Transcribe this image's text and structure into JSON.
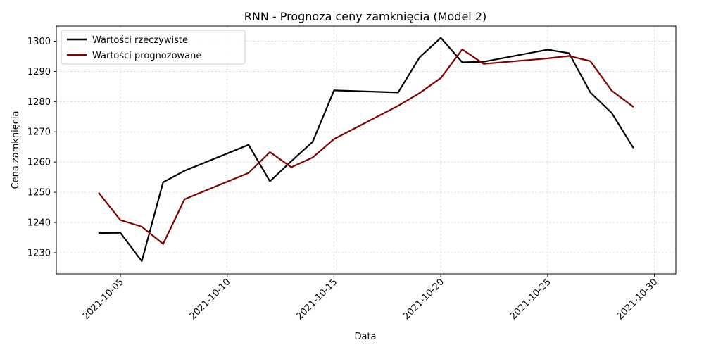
{
  "chart_data": {
    "type": "line",
    "title": "RNN - Prognoza ceny zamknięcia (Model 2)",
    "xlabel": "Data",
    "ylabel": "Cena zamknięcia",
    "x_tick_labels": [
      "2021-10-05",
      "2021-10-10",
      "2021-10-15",
      "2021-10-20",
      "2021-10-25",
      "2021-10-30"
    ],
    "y_ticks": [
      1230,
      1240,
      1250,
      1260,
      1270,
      1280,
      1290,
      1300
    ],
    "xlim": [
      "2021-10-02",
      "2021-10-31"
    ],
    "ylim": [
      1223,
      1305
    ],
    "grid": true,
    "legend_position": "top-left",
    "series": [
      {
        "name": "Wartości rzeczywiste",
        "color": "#000000",
        "x": [
          "2021-10-04",
          "2021-10-05",
          "2021-10-06",
          "2021-10-07",
          "2021-10-08",
          "2021-10-11",
          "2021-10-12",
          "2021-10-13",
          "2021-10-14",
          "2021-10-15",
          "2021-10-18",
          "2021-10-19",
          "2021-10-20",
          "2021-10-21",
          "2021-10-22",
          "2021-10-25",
          "2021-10-26",
          "2021-10-27",
          "2021-10-28",
          "2021-10-29"
        ],
        "values": [
          1236.5,
          1236.6,
          1227.2,
          1253.3,
          1257.1,
          1265.7,
          1253.6,
          1260.3,
          1266.7,
          1283.7,
          1283.0,
          1294.6,
          1301.1,
          1293.0,
          1293.2,
          1297.2,
          1296.0,
          1283.0,
          1276.2,
          1264.8
        ]
      },
      {
        "name": "Wartości prognozowane",
        "color": "#800000",
        "x": [
          "2021-10-04",
          "2021-10-05",
          "2021-10-06",
          "2021-10-07",
          "2021-10-08",
          "2021-10-11",
          "2021-10-12",
          "2021-10-13",
          "2021-10-14",
          "2021-10-15",
          "2021-10-18",
          "2021-10-19",
          "2021-10-20",
          "2021-10-21",
          "2021-10-22",
          "2021-10-25",
          "2021-10-26",
          "2021-10-27",
          "2021-10-28",
          "2021-10-29"
        ],
        "values": [
          1249.7,
          1240.8,
          1238.6,
          1232.9,
          1247.7,
          1256.4,
          1263.3,
          1258.3,
          1261.5,
          1267.6,
          1278.6,
          1282.8,
          1287.8,
          1297.3,
          1292.5,
          1294.3,
          1295.1,
          1293.4,
          1283.6,
          1278.3
        ]
      }
    ]
  }
}
